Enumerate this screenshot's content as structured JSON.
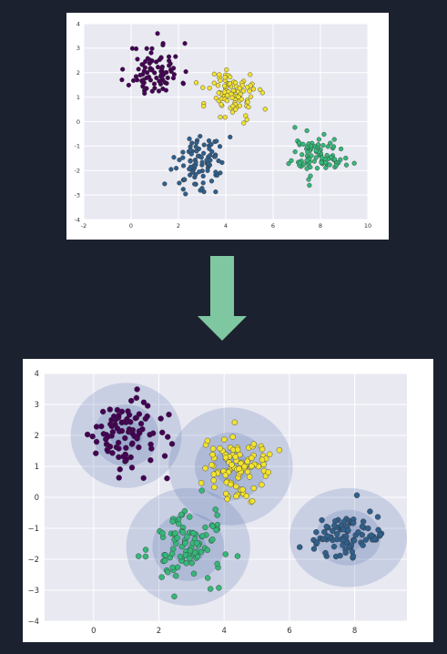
{
  "colors": {
    "page_background": "#1c2130",
    "plot_background": "#e9e9f2",
    "grid": "#ffffff",
    "purple": "#440154",
    "blue": "#2f5f8a",
    "green": "#35b779",
    "yellow": "#f1e230",
    "ellipse_fill": "#4c6aab",
    "arrow": "#7fc7a0"
  },
  "arrow_icon": "down-arrow-icon",
  "chart_data": [
    {
      "type": "scatter",
      "title": "",
      "xlabel": "",
      "ylabel": "",
      "xlim": [
        -2,
        10
      ],
      "ylim": [
        -4,
        4
      ],
      "xticks": [
        "-2",
        "0",
        "2",
        "4",
        "6",
        "8",
        "10"
      ],
      "yticks": [
        "4",
        "3",
        "2",
        "1",
        "0",
        "-1",
        "-2",
        "-3",
        "-4"
      ],
      "grid": true,
      "clusters": [
        {
          "color": "purple",
          "center": [
            1.0,
            2.1
          ],
          "spread": [
            0.55,
            0.55
          ]
        },
        {
          "color": "yellow",
          "center": [
            4.3,
            1.1
          ],
          "spread": [
            0.55,
            0.55
          ]
        },
        {
          "color": "blue",
          "center": [
            2.9,
            -1.6
          ],
          "spread": [
            0.55,
            0.55
          ]
        },
        {
          "color": "green",
          "center": [
            7.9,
            -1.4
          ],
          "spread": [
            0.55,
            0.4
          ]
        }
      ]
    },
    {
      "type": "scatter",
      "title": "",
      "xlabel": "",
      "ylabel": "",
      "xlim": [
        -1.5,
        9.6
      ],
      "ylim": [
        -4,
        4
      ],
      "xticks": [
        "0",
        "2",
        "4",
        "6",
        "8"
      ],
      "yticks": [
        "4",
        "3",
        "2",
        "1",
        "0",
        "−1",
        "−2",
        "−3",
        "−4"
      ],
      "grid": true,
      "clusters": [
        {
          "color": "purple",
          "center": [
            0.95,
            2.05
          ],
          "spread": [
            0.55,
            0.55
          ]
        },
        {
          "color": "yellow",
          "center": [
            4.25,
            1.05
          ],
          "spread": [
            0.55,
            0.55
          ]
        },
        {
          "color": "green",
          "center": [
            2.85,
            -1.55
          ],
          "spread": [
            0.55,
            0.55
          ]
        },
        {
          "color": "blue",
          "center": [
            7.8,
            -1.3
          ],
          "spread": [
            0.55,
            0.4
          ]
        }
      ],
      "ellipses": [
        {
          "center": [
            1.0,
            2.0
          ],
          "radii": [
            [
              0.5,
              0.5
            ],
            [
              1.0,
              1.0
            ],
            [
              1.7,
              1.7
            ]
          ]
        },
        {
          "center": [
            4.2,
            1.0
          ],
          "radii": [
            [
              0.55,
              0.55
            ],
            [
              1.1,
              1.1
            ],
            [
              1.9,
              1.9
            ]
          ]
        },
        {
          "center": [
            2.9,
            -1.6
          ],
          "radii": [
            [
              0.55,
              0.55
            ],
            [
              1.1,
              1.1
            ],
            [
              1.9,
              1.9
            ]
          ]
        },
        {
          "center": [
            7.8,
            -1.3
          ],
          "radii": [
            [
              0.5,
              0.45
            ],
            [
              1.0,
              0.9
            ],
            [
              1.8,
              1.6
            ]
          ]
        }
      ]
    }
  ]
}
